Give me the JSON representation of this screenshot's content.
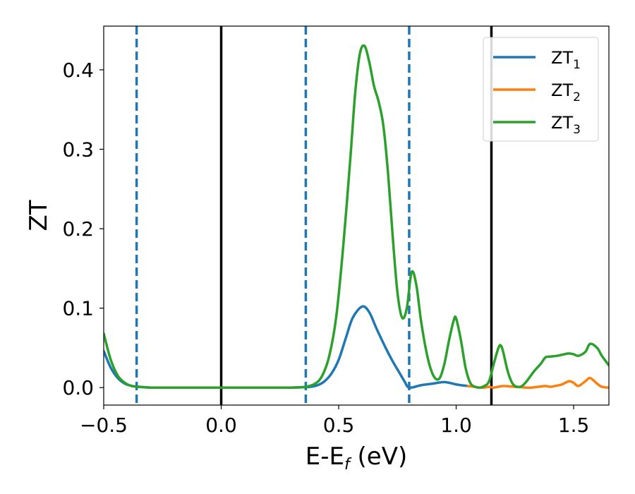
{
  "chart_data": {
    "type": "line",
    "xlabel": {
      "main": "E-E",
      "sub": "f",
      "tail": " (eV)"
    },
    "ylabel": "ZT",
    "xlim": [
      -0.5,
      1.65
    ],
    "ylim": [
      -0.022,
      0.455
    ],
    "xticks": [
      {
        "value": -0.5,
        "label": "−0.5"
      },
      {
        "value": 0.0,
        "label": "0.0"
      },
      {
        "value": 0.5,
        "label": "0.5"
      },
      {
        "value": 1.0,
        "label": "1.0"
      },
      {
        "value": 1.5,
        "label": "1.5"
      }
    ],
    "yticks": [
      {
        "value": 0.0,
        "label": "0.0"
      },
      {
        "value": 0.1,
        "label": "0.1"
      },
      {
        "value": 0.2,
        "label": "0.2"
      },
      {
        "value": 0.3,
        "label": "0.3"
      },
      {
        "value": 0.4,
        "label": "0.4"
      }
    ],
    "grid": false,
    "legend_position": "top-right",
    "vlines": [
      {
        "x": -0.36,
        "style": "dashed",
        "color": "#1f77b4"
      },
      {
        "x": 0.0,
        "style": "solid",
        "color": "#000000"
      },
      {
        "x": 0.36,
        "style": "dashed",
        "color": "#1f77b4"
      },
      {
        "x": 0.8,
        "style": "dashed",
        "color": "#1f77b4"
      },
      {
        "x": 1.15,
        "style": "solid",
        "color": "#000000"
      }
    ],
    "series": [
      {
        "name": "ZT",
        "sub": "1",
        "color": "#1f77b4",
        "x": [
          -0.5,
          -0.47,
          -0.44,
          -0.41,
          -0.38,
          -0.35,
          -0.3,
          -0.2,
          0.0,
          0.2,
          0.3,
          0.35,
          0.38,
          0.41,
          0.44,
          0.47,
          0.5,
          0.53,
          0.56,
          0.6,
          0.63,
          0.66,
          0.7,
          0.73,
          0.76,
          0.78,
          0.8,
          0.85,
          0.9,
          0.95,
          1.0,
          1.05
        ],
        "y": [
          0.046,
          0.025,
          0.012,
          0.005,
          0.002,
          0.001,
          0.0,
          0.0,
          0.0,
          0.0,
          0.0,
          0.0005,
          0.001,
          0.003,
          0.008,
          0.018,
          0.035,
          0.062,
          0.088,
          0.102,
          0.095,
          0.075,
          0.05,
          0.033,
          0.018,
          0.008,
          0.0,
          0.003,
          0.005,
          0.007,
          0.004,
          0.002
        ]
      },
      {
        "name": "ZT",
        "sub": "2",
        "color": "#ff7f0e",
        "x": [
          1.05,
          1.08,
          1.1,
          1.12,
          1.14,
          1.16,
          1.2,
          1.25,
          1.3,
          1.32,
          1.35,
          1.38,
          1.4,
          1.42,
          1.45,
          1.48,
          1.5,
          1.52,
          1.55,
          1.57,
          1.6,
          1.62,
          1.65
        ],
        "y": [
          0.002,
          0.001,
          0.0,
          0.0,
          0.001,
          0.0,
          0.002,
          0.001,
          0.0,
          0.0,
          0.001,
          0.002,
          0.001,
          0.002,
          0.004,
          0.008,
          0.006,
          0.002,
          0.008,
          0.012,
          0.005,
          0.001,
          0.0
        ]
      },
      {
        "name": "ZT",
        "sub": "3",
        "color": "#2ca02c",
        "x": [
          -0.5,
          -0.47,
          -0.44,
          -0.41,
          -0.38,
          -0.35,
          -0.3,
          -0.2,
          0.0,
          0.2,
          0.3,
          0.36,
          0.4,
          0.43,
          0.46,
          0.49,
          0.52,
          0.55,
          0.57,
          0.59,
          0.61,
          0.63,
          0.65,
          0.67,
          0.69,
          0.71,
          0.73,
          0.75,
          0.77,
          0.79,
          0.81,
          0.83,
          0.85,
          0.87,
          0.89,
          0.91,
          0.93,
          0.95,
          0.97,
          0.99,
          1.0,
          1.02,
          1.04,
          1.06,
          1.08,
          1.1,
          1.12,
          1.14,
          1.16,
          1.18,
          1.19,
          1.2,
          1.22,
          1.24,
          1.26,
          1.28,
          1.3,
          1.33,
          1.36,
          1.38,
          1.4,
          1.43,
          1.46,
          1.48,
          1.5,
          1.52,
          1.55,
          1.57,
          1.6,
          1.62,
          1.65
        ],
        "y": [
          0.068,
          0.035,
          0.015,
          0.006,
          0.002,
          0.001,
          0.0,
          0.0,
          0.0,
          0.0,
          0.0,
          0.001,
          0.005,
          0.015,
          0.04,
          0.09,
          0.18,
          0.29,
          0.37,
          0.42,
          0.43,
          0.41,
          0.38,
          0.36,
          0.33,
          0.27,
          0.19,
          0.12,
          0.088,
          0.1,
          0.145,
          0.13,
          0.085,
          0.05,
          0.025,
          0.012,
          0.012,
          0.03,
          0.06,
          0.085,
          0.087,
          0.06,
          0.025,
          0.006,
          0.001,
          0.0,
          0.002,
          0.008,
          0.03,
          0.05,
          0.053,
          0.045,
          0.02,
          0.005,
          0.001,
          0.002,
          0.008,
          0.02,
          0.03,
          0.038,
          0.039,
          0.04,
          0.042,
          0.043,
          0.042,
          0.04,
          0.045,
          0.055,
          0.05,
          0.04,
          0.028
        ]
      }
    ]
  }
}
